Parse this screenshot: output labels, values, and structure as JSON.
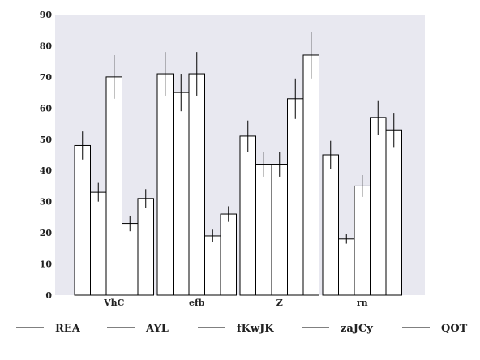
{
  "chart_data": {
    "type": "bar",
    "categories": [
      "VhC",
      "efb",
      "Z",
      "rn"
    ],
    "series": [
      {
        "name": "REA",
        "values": [
          48,
          71,
          51,
          45
        ],
        "errors": [
          4.5,
          7.0,
          5.0,
          4.5
        ]
      },
      {
        "name": "AYL",
        "values": [
          33,
          65,
          42,
          18
        ],
        "errors": [
          3.0,
          6.0,
          4.0,
          1.5
        ]
      },
      {
        "name": "fKwJK",
        "values": [
          70,
          71,
          42,
          35
        ],
        "errors": [
          7.0,
          7.0,
          4.0,
          3.5
        ]
      },
      {
        "name": "zaJCy",
        "values": [
          23,
          19,
          63,
          57
        ],
        "errors": [
          2.5,
          2.0,
          6.5,
          5.5
        ]
      },
      {
        "name": "QOT",
        "values": [
          31,
          26,
          77,
          53
        ],
        "errors": [
          3.0,
          2.5,
          7.5,
          5.5
        ]
      }
    ],
    "title": "",
    "xlabel": "",
    "ylabel": "",
    "ylim": [
      0,
      90
    ],
    "yticks": [
      0,
      10,
      20,
      30,
      40,
      50,
      60,
      70,
      80,
      90
    ],
    "grid": false,
    "legend": "bottom",
    "colors": {
      "plot_bg": "#e8e8f0",
      "bar_fill": "#ffffff",
      "bar_edge": "#000000"
    }
  }
}
